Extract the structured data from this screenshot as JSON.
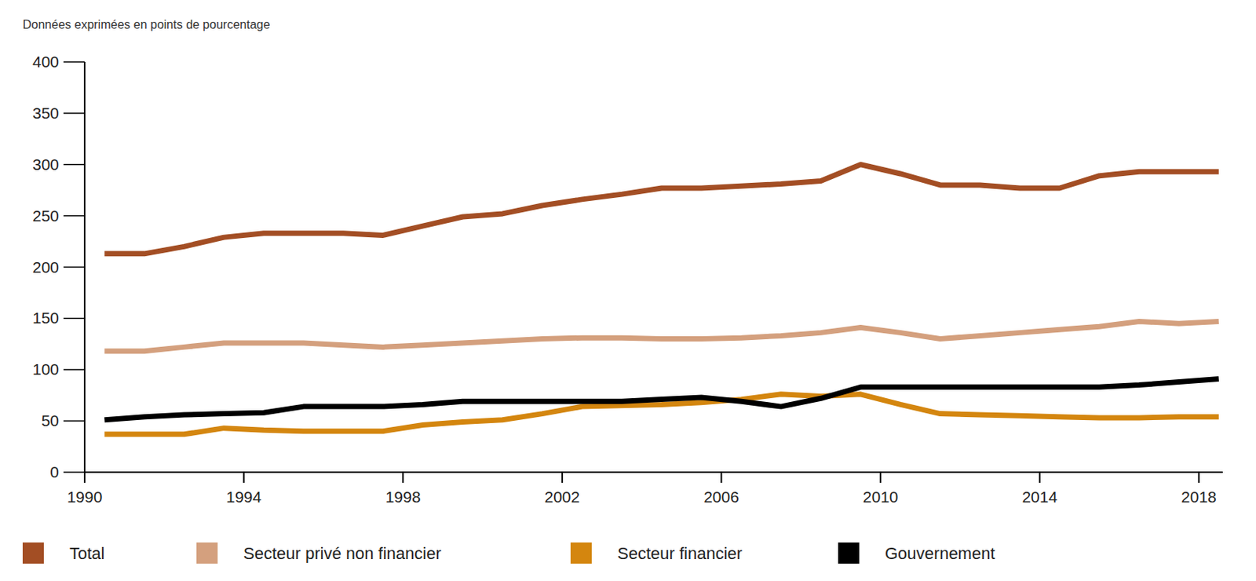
{
  "chart_data": {
    "type": "line",
    "subtitle": "Données exprimées en points de pourcentage",
    "x": [
      1990.5,
      1991.5,
      1992.5,
      1993.5,
      1994.5,
      1995.5,
      1996.5,
      1997.5,
      1998.5,
      1999.5,
      2000.5,
      2001.5,
      2002.5,
      2003.5,
      2004.5,
      2005.5,
      2006.5,
      2007.5,
      2008.5,
      2009.5,
      2010.5,
      2011.5,
      2012.5,
      2013.5,
      2014.5,
      2015.5,
      2016.5,
      2017.5,
      2018.5
    ],
    "series": [
      {
        "name": "Total",
        "color": "#a34e24",
        "values": [
          213,
          213,
          220,
          229,
          233,
          233,
          233,
          231,
          240,
          249,
          252,
          260,
          266,
          271,
          277,
          277,
          279,
          281,
          284,
          300,
          291,
          280,
          280,
          277,
          277,
          289,
          293,
          293,
          293
        ]
      },
      {
        "name": "Secteur privé non financier",
        "color": "#d4a07e",
        "values": [
          118,
          118,
          122,
          126,
          126,
          126,
          124,
          122,
          124,
          126,
          128,
          130,
          131,
          131,
          130,
          130,
          131,
          133,
          136,
          141,
          136,
          130,
          133,
          136,
          139,
          142,
          147,
          145,
          147
        ]
      },
      {
        "name": "Secteur financier",
        "color": "#d4860f",
        "values": [
          37,
          37,
          37,
          43,
          41,
          40,
          40,
          40,
          46,
          49,
          51,
          57,
          64,
          65,
          66,
          68,
          71,
          76,
          74,
          76,
          66,
          57,
          56,
          55,
          54,
          53,
          53,
          54,
          54
        ]
      },
      {
        "name": "Gouvernement",
        "color": "#000000",
        "values": [
          51,
          54,
          56,
          57,
          58,
          64,
          64,
          64,
          66,
          69,
          69,
          69,
          69,
          69,
          71,
          73,
          69,
          64,
          72,
          83,
          83,
          83,
          83,
          83,
          83,
          83,
          85,
          88,
          91
        ]
      }
    ],
    "xlim": [
      1990,
      2018.6
    ],
    "xticks": [
      1990,
      1994,
      1998,
      2002,
      2006,
      2010,
      2014,
      2018
    ],
    "ylim": [
      0,
      400
    ],
    "yticks": [
      0,
      50,
      100,
      150,
      200,
      250,
      300,
      350,
      400
    ],
    "grid": false,
    "legend": "bottom"
  }
}
